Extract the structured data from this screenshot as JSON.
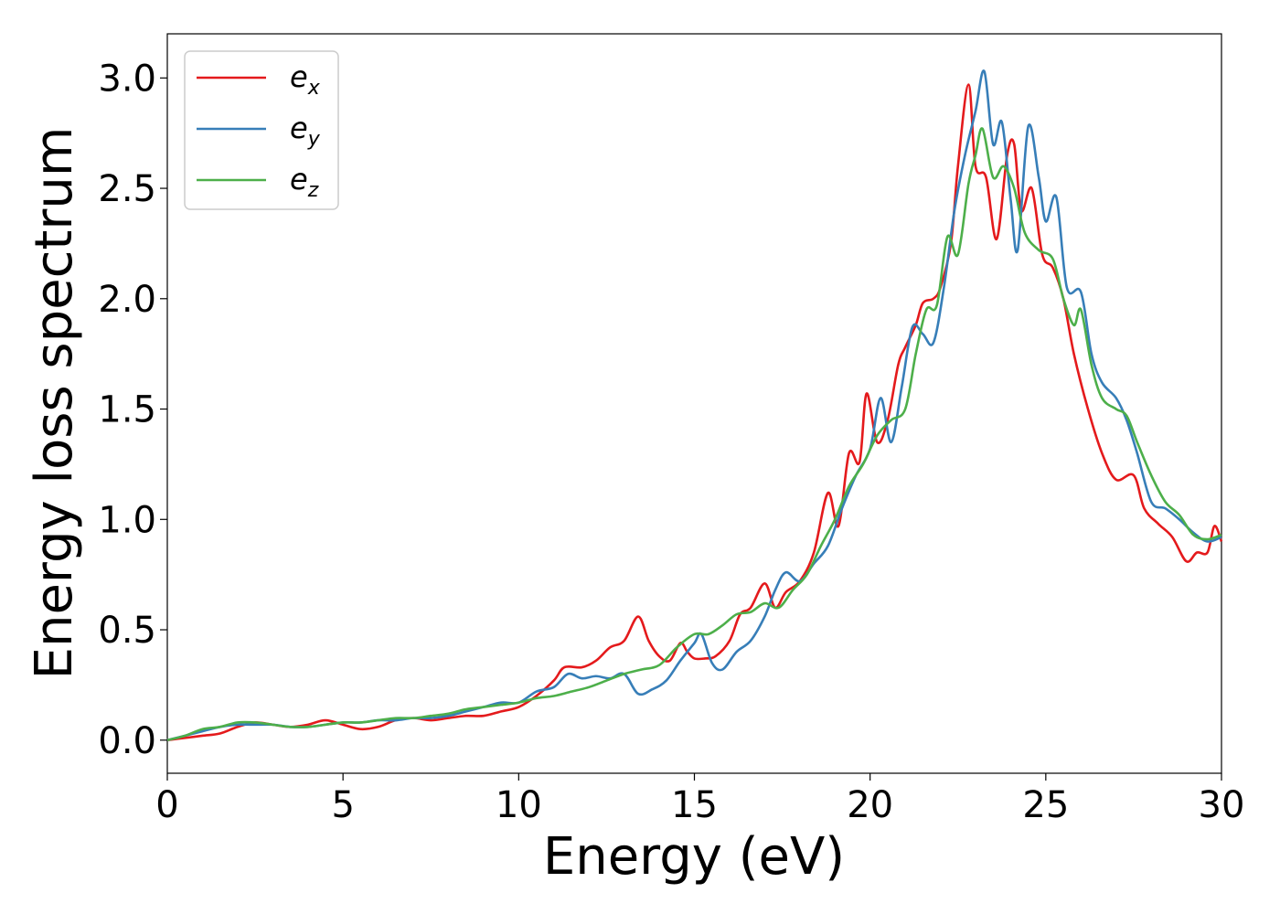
{
  "chart_data": {
    "type": "line",
    "title": "",
    "xlabel": "Energy (eV)",
    "ylabel": "Energy loss spectrum",
    "xlim": [
      0,
      30
    ],
    "ylim": [
      -0.15,
      3.2
    ],
    "xticks": [
      "0",
      "5",
      "10",
      "15",
      "20",
      "25",
      "30"
    ],
    "yticks": [
      "0.0",
      "0.5",
      "1.0",
      "1.5",
      "2.0",
      "2.5",
      "3.0"
    ],
    "grid": false,
    "legend_position": "upper-left",
    "series": [
      {
        "name": "e",
        "subscript": "x",
        "color": "#e41a1c",
        "points": [
          [
            0,
            0
          ],
          [
            0.5,
            0.01
          ],
          [
            1,
            0.02
          ],
          [
            1.5,
            0.03
          ],
          [
            2,
            0.06
          ],
          [
            2.5,
            0.08
          ],
          [
            3,
            0.07
          ],
          [
            3.5,
            0.06
          ],
          [
            4,
            0.07
          ],
          [
            4.5,
            0.09
          ],
          [
            5,
            0.07
          ],
          [
            5.5,
            0.05
          ],
          [
            6,
            0.06
          ],
          [
            6.5,
            0.09
          ],
          [
            7,
            0.1
          ],
          [
            7.5,
            0.09
          ],
          [
            8,
            0.1
          ],
          [
            8.5,
            0.11
          ],
          [
            9,
            0.11
          ],
          [
            9.5,
            0.13
          ],
          [
            10,
            0.15
          ],
          [
            10.5,
            0.2
          ],
          [
            11,
            0.27
          ],
          [
            11.3,
            0.33
          ],
          [
            11.8,
            0.33
          ],
          [
            12.2,
            0.36
          ],
          [
            12.6,
            0.42
          ],
          [
            13,
            0.45
          ],
          [
            13.4,
            0.56
          ],
          [
            13.7,
            0.45
          ],
          [
            14,
            0.38
          ],
          [
            14.3,
            0.36
          ],
          [
            14.6,
            0.44
          ],
          [
            14.8,
            0.4
          ],
          [
            15,
            0.37
          ],
          [
            15.3,
            0.37
          ],
          [
            15.6,
            0.38
          ],
          [
            16,
            0.45
          ],
          [
            16.3,
            0.57
          ],
          [
            16.6,
            0.6
          ],
          [
            17,
            0.71
          ],
          [
            17.3,
            0.6
          ],
          [
            17.6,
            0.67
          ],
          [
            18,
            0.72
          ],
          [
            18.4,
            0.85
          ],
          [
            18.8,
            1.12
          ],
          [
            19.1,
            0.97
          ],
          [
            19.4,
            1.3
          ],
          [
            19.7,
            1.26
          ],
          [
            19.9,
            1.57
          ],
          [
            20.2,
            1.35
          ],
          [
            20.5,
            1.45
          ],
          [
            20.8,
            1.7
          ],
          [
            21,
            1.78
          ],
          [
            21.3,
            1.88
          ],
          [
            21.5,
            1.98
          ],
          [
            21.8,
            2.0
          ],
          [
            22,
            2.05
          ],
          [
            22.3,
            2.25
          ],
          [
            22.5,
            2.6
          ],
          [
            22.8,
            2.97
          ],
          [
            23.0,
            2.6
          ],
          [
            23.3,
            2.55
          ],
          [
            23.6,
            2.27
          ],
          [
            23.9,
            2.65
          ],
          [
            24.1,
            2.7
          ],
          [
            24.3,
            2.4
          ],
          [
            24.6,
            2.5
          ],
          [
            24.9,
            2.2
          ],
          [
            25.2,
            2.14
          ],
          [
            25.5,
            2.0
          ],
          [
            25.8,
            1.75
          ],
          [
            26.2,
            1.5
          ],
          [
            26.6,
            1.3
          ],
          [
            27,
            1.18
          ],
          [
            27.5,
            1.2
          ],
          [
            27.8,
            1.05
          ],
          [
            28.2,
            0.98
          ],
          [
            28.6,
            0.92
          ],
          [
            29.0,
            0.81
          ],
          [
            29.3,
            0.85
          ],
          [
            29.6,
            0.85
          ],
          [
            29.8,
            0.97
          ],
          [
            30,
            0.9
          ]
        ]
      },
      {
        "name": "e",
        "subscript": "y",
        "color": "#377eb8",
        "points": [
          [
            0,
            0
          ],
          [
            0.5,
            0.02
          ],
          [
            1,
            0.04
          ],
          [
            1.5,
            0.06
          ],
          [
            2,
            0.07
          ],
          [
            2.5,
            0.07
          ],
          [
            3,
            0.07
          ],
          [
            3.5,
            0.06
          ],
          [
            4,
            0.06
          ],
          [
            4.5,
            0.07
          ],
          [
            5,
            0.08
          ],
          [
            5.5,
            0.08
          ],
          [
            6,
            0.09
          ],
          [
            6.5,
            0.09
          ],
          [
            7,
            0.1
          ],
          [
            7.5,
            0.1
          ],
          [
            8,
            0.11
          ],
          [
            8.5,
            0.13
          ],
          [
            9,
            0.15
          ],
          [
            9.5,
            0.17
          ],
          [
            10,
            0.17
          ],
          [
            10.5,
            0.22
          ],
          [
            11,
            0.24
          ],
          [
            11.4,
            0.3
          ],
          [
            11.8,
            0.28
          ],
          [
            12.2,
            0.29
          ],
          [
            12.6,
            0.28
          ],
          [
            13,
            0.3
          ],
          [
            13.4,
            0.21
          ],
          [
            13.8,
            0.23
          ],
          [
            14.2,
            0.27
          ],
          [
            14.6,
            0.36
          ],
          [
            15,
            0.44
          ],
          [
            15.2,
            0.48
          ],
          [
            15.5,
            0.35
          ],
          [
            15.8,
            0.32
          ],
          [
            16.2,
            0.4
          ],
          [
            16.6,
            0.45
          ],
          [
            17,
            0.56
          ],
          [
            17.3,
            0.68
          ],
          [
            17.6,
            0.76
          ],
          [
            18,
            0.72
          ],
          [
            18.4,
            0.8
          ],
          [
            18.8,
            0.88
          ],
          [
            19.2,
            1.05
          ],
          [
            19.6,
            1.2
          ],
          [
            20,
            1.32
          ],
          [
            20.3,
            1.55
          ],
          [
            20.6,
            1.35
          ],
          [
            20.9,
            1.6
          ],
          [
            21.2,
            1.87
          ],
          [
            21.5,
            1.84
          ],
          [
            21.8,
            1.8
          ],
          [
            22.1,
            2.05
          ],
          [
            22.4,
            2.4
          ],
          [
            22.7,
            2.65
          ],
          [
            23,
            2.85
          ],
          [
            23.25,
            3.03
          ],
          [
            23.5,
            2.7
          ],
          [
            23.75,
            2.8
          ],
          [
            24.0,
            2.45
          ],
          [
            24.2,
            2.22
          ],
          [
            24.5,
            2.78
          ],
          [
            24.8,
            2.55
          ],
          [
            25.0,
            2.35
          ],
          [
            25.3,
            2.46
          ],
          [
            25.6,
            2.05
          ],
          [
            26,
            2.03
          ],
          [
            26.3,
            1.75
          ],
          [
            26.6,
            1.62
          ],
          [
            27,
            1.55
          ],
          [
            27.3,
            1.45
          ],
          [
            27.6,
            1.3
          ],
          [
            28,
            1.08
          ],
          [
            28.4,
            1.05
          ],
          [
            28.8,
            1.0
          ],
          [
            29.2,
            0.94
          ],
          [
            29.6,
            0.9
          ],
          [
            30,
            0.92
          ]
        ]
      },
      {
        "name": "e",
        "subscript": "z",
        "color": "#4daf4a",
        "points": [
          [
            0,
            0
          ],
          [
            0.5,
            0.02
          ],
          [
            1,
            0.05
          ],
          [
            1.5,
            0.06
          ],
          [
            2,
            0.08
          ],
          [
            2.5,
            0.08
          ],
          [
            3,
            0.07
          ],
          [
            3.5,
            0.06
          ],
          [
            4,
            0.06
          ],
          [
            4.5,
            0.07
          ],
          [
            5,
            0.08
          ],
          [
            5.5,
            0.08
          ],
          [
            6,
            0.09
          ],
          [
            6.5,
            0.1
          ],
          [
            7,
            0.1
          ],
          [
            7.5,
            0.11
          ],
          [
            8,
            0.12
          ],
          [
            8.5,
            0.14
          ],
          [
            9,
            0.15
          ],
          [
            9.5,
            0.16
          ],
          [
            10,
            0.17
          ],
          [
            10.5,
            0.19
          ],
          [
            11,
            0.2
          ],
          [
            11.5,
            0.22
          ],
          [
            12,
            0.24
          ],
          [
            12.5,
            0.27
          ],
          [
            13,
            0.3
          ],
          [
            13.5,
            0.32
          ],
          [
            14,
            0.34
          ],
          [
            14.5,
            0.42
          ],
          [
            15,
            0.48
          ],
          [
            15.4,
            0.48
          ],
          [
            15.8,
            0.52
          ],
          [
            16.2,
            0.57
          ],
          [
            16.6,
            0.58
          ],
          [
            17,
            0.62
          ],
          [
            17.4,
            0.6
          ],
          [
            17.8,
            0.68
          ],
          [
            18.2,
            0.75
          ],
          [
            18.6,
            0.88
          ],
          [
            19,
            1.0
          ],
          [
            19.4,
            1.15
          ],
          [
            19.8,
            1.25
          ],
          [
            20.2,
            1.38
          ],
          [
            20.6,
            1.45
          ],
          [
            21,
            1.5
          ],
          [
            21.3,
            1.75
          ],
          [
            21.6,
            1.95
          ],
          [
            21.9,
            1.97
          ],
          [
            22.2,
            2.28
          ],
          [
            22.5,
            2.2
          ],
          [
            22.8,
            2.52
          ],
          [
            23.0,
            2.65
          ],
          [
            23.2,
            2.77
          ],
          [
            23.5,
            2.55
          ],
          [
            23.8,
            2.6
          ],
          [
            24.1,
            2.5
          ],
          [
            24.4,
            2.3
          ],
          [
            24.8,
            2.22
          ],
          [
            25.2,
            2.18
          ],
          [
            25.5,
            2.0
          ],
          [
            25.8,
            1.88
          ],
          [
            26.0,
            1.95
          ],
          [
            26.3,
            1.7
          ],
          [
            26.6,
            1.55
          ],
          [
            27.0,
            1.5
          ],
          [
            27.3,
            1.47
          ],
          [
            27.6,
            1.35
          ],
          [
            28,
            1.2
          ],
          [
            28.4,
            1.08
          ],
          [
            28.8,
            1.02
          ],
          [
            29.2,
            0.93
          ],
          [
            29.6,
            0.91
          ],
          [
            30,
            0.93
          ]
        ]
      }
    ]
  }
}
